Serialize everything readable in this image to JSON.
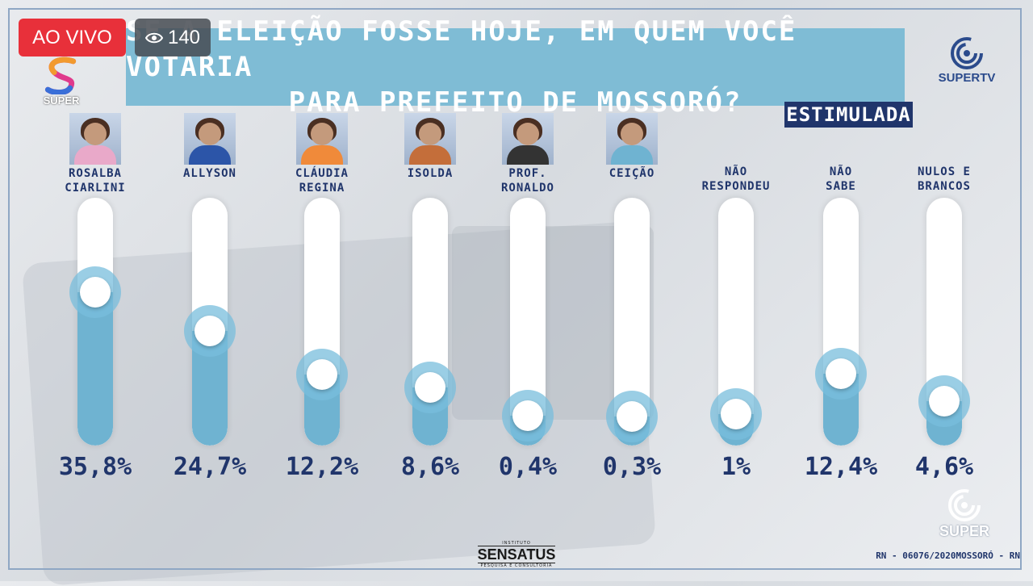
{
  "badges": {
    "live": "AO VIVO",
    "viewers": "140"
  },
  "title": {
    "line1": "SE A ELEIÇÃO FOSSE HOJE, EM QUEM VOCÊ VOTARIA",
    "line2": "PARA PREFEITO DE MOSSORÓ?"
  },
  "tag": "ESTIMULADA",
  "logos": {
    "super": "SUPER",
    "supertv": "SUPERTV",
    "supertv_footer": "SUPER",
    "sensatus_top": "INSTITUTO",
    "sensatus": "SENSATUS",
    "sensatus_bottom": "PESQUISA E CONSULTORIA"
  },
  "footer_note": "RN - 06076/2020MOSSORÓ - RN",
  "colors": {
    "accent": "#7fbcd5",
    "fill": "#6fb3d1",
    "navy": "#20356b",
    "live": "#e8303a"
  },
  "chart_data": {
    "type": "bar",
    "title": "SE A ELEIÇÃO FOSSE HOJE, EM QUEM VOCÊ VOTARIA PARA PREFEITO DE MOSSORÓ?",
    "categories": [
      "ROSALBA\nCIARLINI",
      "ALLYSON",
      "CLÁUDIA\nREGINA",
      "ISOLDA",
      "PROF.\nRONALDO",
      "CEIÇÃO",
      "NÃO\nRESPONDEU",
      "NÃO\nSABE",
      "NULOS E\nBRANCOS"
    ],
    "values": [
      35.8,
      24.7,
      12.2,
      8.6,
      0.4,
      0.3,
      1,
      12.4,
      4.6
    ],
    "labels": [
      "35,8%",
      "24,7%",
      "12,2%",
      "8,6%",
      "0,4%",
      "0,3%",
      "1%",
      "12,4%",
      "4,6%"
    ],
    "has_photo": [
      true,
      true,
      true,
      true,
      true,
      true,
      false,
      false,
      false
    ],
    "ylim": [
      0,
      50
    ],
    "unit": "%"
  }
}
